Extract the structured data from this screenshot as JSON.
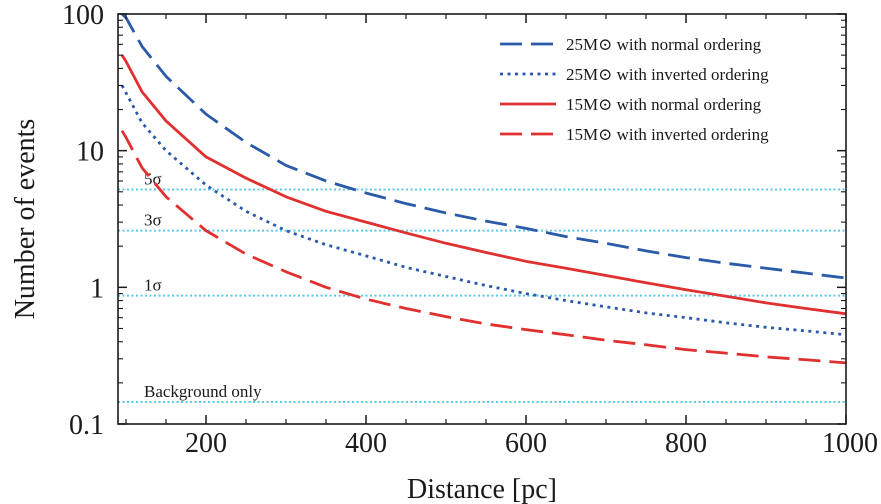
{
  "chart_data": {
    "type": "line",
    "xlabel": "Distance [pc]",
    "ylabel": "Number of events",
    "xlim": [
      90,
      1000
    ],
    "ylim": [
      0.1,
      100
    ],
    "yscale": "log",
    "x_ticks": [
      200,
      400,
      600,
      800,
      1000
    ],
    "x_tick_labels": [
      "200",
      "400",
      "600",
      "800",
      "1000"
    ],
    "y_ticks": [
      0.1,
      1,
      10,
      100
    ],
    "y_tick_labels": [
      "0.1",
      "1",
      "10",
      "100"
    ],
    "legend_position": "top-right",
    "grid": false,
    "series": [
      {
        "name": "25M⊙ with normal ordering",
        "color": "#2a5aa8",
        "dash": "long-dash",
        "x": [
          95,
          100,
          120,
          150,
          200,
          250,
          300,
          350,
          400,
          450,
          500,
          550,
          600,
          650,
          700,
          750,
          800,
          850,
          900,
          950,
          1000
        ],
        "y": [
          100,
          94,
          58,
          35,
          18.5,
          11.5,
          7.8,
          6.0,
          4.9,
          4.1,
          3.5,
          3.05,
          2.7,
          2.35,
          2.1,
          1.85,
          1.65,
          1.5,
          1.38,
          1.27,
          1.17
        ]
      },
      {
        "name": "25M⊙ with inverted ordering",
        "color": "#2a5aa8",
        "dash": "dotted",
        "x": [
          95,
          100,
          120,
          150,
          200,
          250,
          300,
          350,
          400,
          450,
          500,
          550,
          600,
          650,
          700,
          750,
          800,
          850,
          900,
          950,
          1000
        ],
        "y": [
          30,
          26.5,
          16,
          10,
          5.6,
          3.6,
          2.6,
          2.05,
          1.7,
          1.4,
          1.2,
          1.03,
          0.9,
          0.8,
          0.72,
          0.65,
          0.6,
          0.55,
          0.51,
          0.48,
          0.45
        ]
      },
      {
        "name": "15M⊙ with normal ordering",
        "color": "#e03030",
        "dash": "solid",
        "x": [
          95,
          100,
          120,
          150,
          200,
          250,
          300,
          350,
          400,
          450,
          500,
          550,
          600,
          650,
          700,
          750,
          800,
          850,
          900,
          950,
          1000
        ],
        "y": [
          50,
          45,
          27,
          16.5,
          9.0,
          6.3,
          4.6,
          3.6,
          3.0,
          2.5,
          2.1,
          1.8,
          1.55,
          1.38,
          1.22,
          1.08,
          0.96,
          0.86,
          0.77,
          0.7,
          0.64
        ]
      },
      {
        "name": "15M⊙ with inverted ordering",
        "color": "#e03030",
        "dash": "long-dash",
        "x": [
          95,
          100,
          120,
          150,
          200,
          250,
          300,
          350,
          400,
          450,
          500,
          550,
          600,
          650,
          700,
          750,
          800,
          850,
          900,
          950,
          1000
        ],
        "y": [
          14,
          12.5,
          7.5,
          4.6,
          2.6,
          1.75,
          1.3,
          1.0,
          0.82,
          0.7,
          0.61,
          0.54,
          0.49,
          0.45,
          0.41,
          0.38,
          0.35,
          0.33,
          0.31,
          0.295,
          0.28
        ]
      }
    ],
    "reference_lines": [
      {
        "label": "5σ",
        "y": 5.2,
        "color": "#5bc8e8"
      },
      {
        "label": "3σ",
        "y": 2.6,
        "color": "#5bc8e8"
      },
      {
        "label": "1σ",
        "y": 0.87,
        "color": "#5bc8e8"
      },
      {
        "label": "Background only",
        "y": 0.145,
        "color": "#5bc8e8"
      }
    ]
  }
}
